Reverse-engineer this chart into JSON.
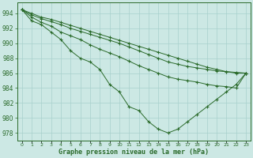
{
  "title": "Graphe pression niveau de la mer (hPa)",
  "hours": [
    0,
    1,
    2,
    3,
    4,
    5,
    6,
    7,
    8,
    9,
    10,
    11,
    12,
    13,
    14,
    15,
    16,
    17,
    18,
    19,
    20,
    21,
    22,
    23
  ],
  "ylim": [
    977.0,
    995.5
  ],
  "yticks": [
    978,
    980,
    982,
    984,
    986,
    988,
    990,
    992,
    994
  ],
  "bg_color": "#cce8e4",
  "grid_color": "#a8d0cc",
  "line_color": "#2a6a2a",
  "line1": [
    994.5,
    994.0,
    993.5,
    993.2,
    992.8,
    992.4,
    992.0,
    991.6,
    991.2,
    990.8,
    990.4,
    990.0,
    989.6,
    989.2,
    988.8,
    988.4,
    988.0,
    987.6,
    987.2,
    986.8,
    986.5,
    986.2,
    986.0,
    986.0
  ],
  "line2": [
    994.5,
    993.8,
    993.3,
    992.9,
    992.5,
    992.0,
    991.6,
    991.2,
    990.8,
    990.4,
    990.0,
    989.5,
    989.0,
    988.5,
    988.0,
    987.5,
    987.2,
    986.9,
    986.7,
    986.5,
    986.3,
    986.2,
    986.1,
    986.0
  ],
  "line3": [
    994.5,
    993.5,
    992.8,
    992.3,
    991.5,
    991.0,
    990.5,
    989.8,
    989.2,
    988.7,
    988.2,
    987.6,
    987.0,
    986.5,
    986.0,
    985.5,
    985.2,
    985.0,
    984.8,
    984.5,
    984.3,
    984.2,
    984.0,
    986.0
  ],
  "line4": [
    994.5,
    993.0,
    992.5,
    991.5,
    990.5,
    989.0,
    988.0,
    987.5,
    986.5,
    984.5,
    983.5,
    981.5,
    981.0,
    979.5,
    978.5,
    978.0,
    978.5,
    979.5,
    980.5,
    981.5,
    982.5,
    983.5,
    984.5,
    986.0
  ]
}
